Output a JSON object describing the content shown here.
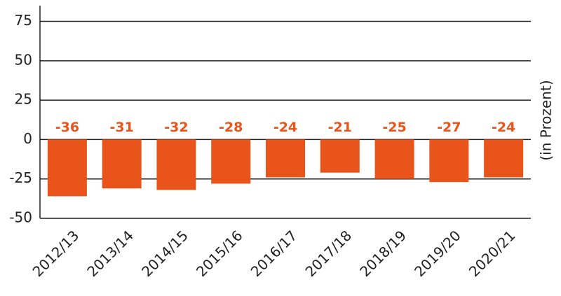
{
  "chart_data": {
    "type": "bar",
    "y_label": "(in Prozent)",
    "categories": [
      "2012/13",
      "2013/14",
      "2014/15",
      "2015/16",
      "2016/17",
      "2017/18",
      "2018/19",
      "2019/20",
      "2020/21"
    ],
    "values": [
      -36,
      -31,
      -32,
      -28,
      -24,
      -21,
      -25,
      -27,
      -24
    ],
    "color": "#e8541a",
    "ylim": [
      -50,
      85
    ],
    "yticks": [
      -50,
      -25,
      0,
      25,
      50,
      75
    ],
    "grid": true
  }
}
